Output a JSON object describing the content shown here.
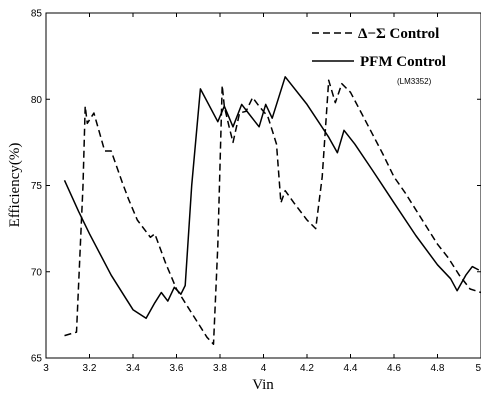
{
  "chart_data": {
    "type": "line",
    "xlabel": "Vin",
    "ylabel": "Efficiency(%)",
    "xlim": [
      3,
      5
    ],
    "ylim": [
      65,
      85
    ],
    "xticks": [
      "3",
      "3.2",
      "3.4",
      "3.6",
      "3.8",
      "4",
      "4.2",
      "4.4",
      "4.6",
      "4.8",
      "5"
    ],
    "yticks": [
      "65",
      "70",
      "75",
      "80",
      "85"
    ],
    "xtick_values": [
      3,
      3.2,
      3.4,
      3.6,
      3.8,
      4,
      4.2,
      4.4,
      4.6,
      4.8,
      5
    ],
    "ytick_values": [
      65,
      70,
      75,
      80,
      85
    ],
    "legend_position": "top-right",
    "legend_note": "(LM3352)",
    "grid": false,
    "series": [
      {
        "name": "Δ−Σ  Control",
        "style": "dashed",
        "color": "#000000",
        "x": [
          3.085,
          3.14,
          3.17,
          3.18,
          3.19,
          3.22,
          3.27,
          3.3,
          3.35,
          3.38,
          3.42,
          3.48,
          3.5,
          3.55,
          3.6,
          3.65,
          3.7,
          3.74,
          3.77,
          3.79,
          3.81,
          3.82,
          3.84,
          3.86,
          3.89,
          3.92,
          3.95,
          3.98,
          4.02,
          4.04,
          4.06,
          4.08,
          4.1,
          4.14,
          4.2,
          4.24,
          4.27,
          4.3,
          4.33,
          4.36,
          4.4,
          4.45,
          4.5,
          4.55,
          4.6,
          4.65,
          4.7,
          4.75,
          4.8,
          4.85,
          4.9,
          4.95,
          5.0
        ],
        "y": [
          66.3,
          66.5,
          75.0,
          79.6,
          78.6,
          79.2,
          77.0,
          77.0,
          75.2,
          74.2,
          73.0,
          72.0,
          72.2,
          70.5,
          69.0,
          68.0,
          67.0,
          66.2,
          65.8,
          71.5,
          80.8,
          79.6,
          78.5,
          77.5,
          79.2,
          79.3,
          80.1,
          79.6,
          79.0,
          78.2,
          77.4,
          74.0,
          74.7,
          74.0,
          73.0,
          72.5,
          75.5,
          81.1,
          79.8,
          80.9,
          80.4,
          79.2,
          78.0,
          76.8,
          75.5,
          74.6,
          73.6,
          72.6,
          71.6,
          70.8,
          69.8,
          69.0,
          68.8
        ]
      },
      {
        "name": "PFM Control",
        "style": "solid",
        "color": "#000000",
        "x": [
          3.085,
          3.15,
          3.2,
          3.3,
          3.4,
          3.46,
          3.5,
          3.53,
          3.56,
          3.59,
          3.62,
          3.64,
          3.67,
          3.71,
          3.79,
          3.82,
          3.86,
          3.9,
          3.93,
          3.98,
          4.01,
          4.04,
          4.1,
          4.2,
          4.3,
          4.34,
          4.37,
          4.42,
          4.5,
          4.6,
          4.7,
          4.8,
          4.86,
          4.89,
          4.93,
          4.96,
          4.99
        ],
        "y": [
          75.3,
          73.5,
          72.2,
          69.8,
          67.8,
          67.3,
          68.2,
          68.8,
          68.3,
          69.1,
          68.7,
          69.2,
          75.0,
          80.6,
          78.7,
          79.6,
          78.4,
          79.7,
          79.2,
          78.4,
          79.7,
          78.9,
          81.3,
          79.7,
          77.8,
          76.9,
          78.2,
          77.4,
          75.9,
          74.0,
          72.1,
          70.4,
          69.6,
          68.9,
          69.8,
          70.3,
          70.1
        ]
      }
    ]
  }
}
